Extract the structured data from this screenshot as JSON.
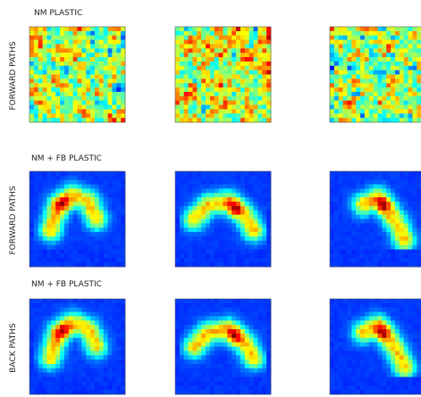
{
  "rows": [
    {
      "title": "NM  PLASTIC",
      "side_label": "FORWARD  PATHS"
    },
    {
      "title": "NM + FB PLASTIC",
      "side_label": "FORWARD  PATHS"
    },
    {
      "title": "NM + FB PLASTIC",
      "side_label": "BACK PATHS"
    }
  ]
}
